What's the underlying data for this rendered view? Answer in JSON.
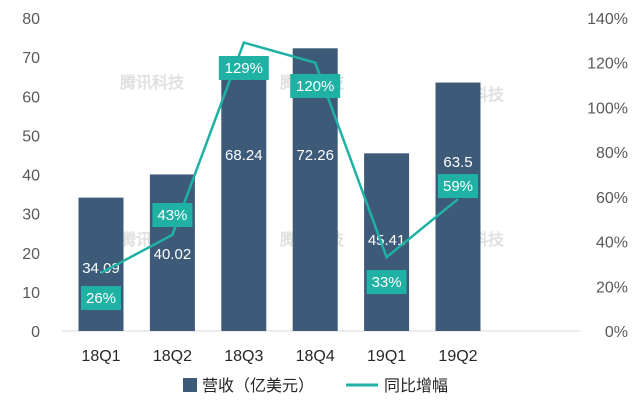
{
  "chart_data": {
    "type": "bar",
    "categories": [
      "18Q1",
      "18Q2",
      "18Q3",
      "18Q4",
      "19Q1",
      "19Q2"
    ],
    "series": [
      {
        "name": "营收（亿美元）",
        "type": "bar",
        "axis": "left",
        "values": [
          34.09,
          40.02,
          68.24,
          72.26,
          45.41,
          63.5
        ],
        "labels": [
          "34.09",
          "40.02",
          "68.24",
          "72.26",
          "45.41",
          "63.5"
        ]
      },
      {
        "name": "同比增幅",
        "type": "line",
        "axis": "right",
        "values": [
          26,
          43,
          129,
          120,
          33,
          59
        ],
        "labels": [
          "26%",
          "43%",
          "129%",
          "120%",
          "33%",
          "59%"
        ]
      }
    ],
    "left_axis": {
      "min": 0,
      "max": 80,
      "ticks": [
        "0",
        "10",
        "20",
        "30",
        "40",
        "50",
        "60",
        "70",
        "80"
      ]
    },
    "right_axis": {
      "min": 0,
      "max": 140,
      "ticks": [
        "0%",
        "20%",
        "40%",
        "60%",
        "80%",
        "100%",
        "120%",
        "140%"
      ]
    },
    "grid": false,
    "legend_position": "bottom",
    "colors": {
      "bar": "#3d5a78",
      "line": "#20b1a5"
    },
    "watermark": "腾讯科技"
  }
}
